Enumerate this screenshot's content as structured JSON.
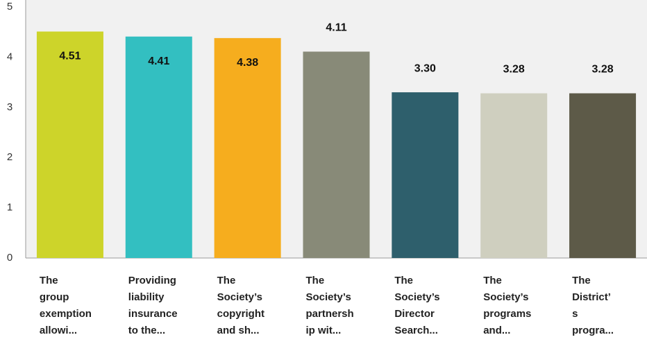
{
  "chart_data": {
    "type": "bar",
    "categories": [
      [
        "The",
        "group",
        "exemption",
        "allowi..."
      ],
      [
        "Providing",
        "liability",
        "insurance",
        "to the..."
      ],
      [
        "The",
        "Society’s",
        "copyright",
        "and sh..."
      ],
      [
        "The",
        "Society’s",
        "partnersh",
        "ip wit..."
      ],
      [
        "The",
        "Society’s",
        "Director",
        "Search..."
      ],
      [
        "The",
        "Society’s",
        "programs",
        "and..."
      ],
      [
        "The",
        "District’",
        "s",
        "progra..."
      ]
    ],
    "values": [
      4.51,
      4.41,
      4.38,
      4.11,
      3.3,
      3.28,
      3.28
    ],
    "value_labels": [
      "4.51",
      "4.41",
      "4.38",
      "4.11",
      "3.30",
      "3.28",
      "3.28"
    ],
    "colors": [
      "#cdd42a",
      "#33bfc1",
      "#f6ad1e",
      "#888a78",
      "#2e5f6c",
      "#cfcfbf",
      "#5d5a48"
    ],
    "ylim": [
      0,
      5
    ],
    "yticks": [
      0,
      1,
      2,
      3,
      4,
      5
    ],
    "grid": true
  }
}
